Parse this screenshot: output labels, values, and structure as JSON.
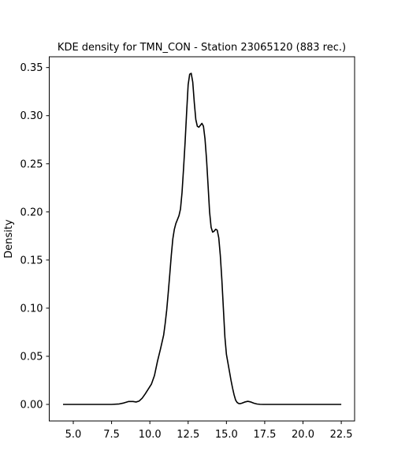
{
  "chart_data": {
    "type": "line",
    "title": "KDE density for TMN_CON - Station 23065120 (883 rec.)",
    "xlabel": "",
    "ylabel": "Density",
    "xlim": [
      3.43,
      23.37
    ],
    "ylim": [
      -0.0172,
      0.3612
    ],
    "xticks": [
      5.0,
      7.5,
      10.0,
      12.5,
      15.0,
      17.5,
      20.0,
      22.5
    ],
    "xtick_labels": [
      "5.0",
      "7.5",
      "10.0",
      "12.5",
      "15.0",
      "17.5",
      "20.0",
      "22.5"
    ],
    "yticks": [
      0.0,
      0.05,
      0.1,
      0.15,
      0.2,
      0.25,
      0.3,
      0.35
    ],
    "ytick_labels": [
      "0.00",
      "0.05",
      "0.10",
      "0.15",
      "0.20",
      "0.25",
      "0.30",
      "0.35"
    ],
    "grid": false,
    "legend": "none",
    "series": [
      {
        "color": "#000000",
        "x": [
          4.33,
          6.0,
          7.5,
          8.0,
          8.3,
          8.6,
          8.9,
          9.1,
          9.3,
          9.5,
          9.7,
          9.9,
          10.1,
          10.3,
          10.5,
          10.7,
          10.9,
          11.0,
          11.1,
          11.2,
          11.3,
          11.4,
          11.5,
          11.6,
          11.7,
          11.8,
          11.9,
          12.0,
          12.1,
          12.2,
          12.3,
          12.4,
          12.5,
          12.6,
          12.7,
          12.8,
          12.9,
          13.0,
          13.1,
          13.2,
          13.3,
          13.4,
          13.5,
          13.6,
          13.7,
          13.8,
          13.9,
          14.0,
          14.1,
          14.2,
          14.3,
          14.4,
          14.5,
          14.6,
          14.7,
          14.8,
          14.9,
          15.0,
          15.1,
          15.2,
          15.3,
          15.4,
          15.5,
          15.6,
          15.7,
          15.8,
          15.9,
          16.0,
          16.2,
          16.4,
          16.6,
          16.8,
          17.0,
          17.2,
          17.4,
          17.6,
          17.8,
          18.0,
          18.2,
          18.4,
          18.6,
          18.8,
          19.5,
          21.0,
          22.5
        ],
        "y": [
          0.0,
          0.0,
          0.0,
          0.0005,
          0.0015,
          0.003,
          0.003,
          0.0025,
          0.0035,
          0.0065,
          0.011,
          0.016,
          0.021,
          0.03,
          0.045,
          0.058,
          0.072,
          0.084,
          0.098,
          0.116,
          0.135,
          0.155,
          0.172,
          0.182,
          0.188,
          0.192,
          0.196,
          0.203,
          0.22,
          0.245,
          0.272,
          0.303,
          0.332,
          0.343,
          0.344,
          0.335,
          0.314,
          0.296,
          0.289,
          0.288,
          0.29,
          0.292,
          0.289,
          0.276,
          0.255,
          0.228,
          0.2,
          0.184,
          0.179,
          0.18,
          0.182,
          0.181,
          0.173,
          0.155,
          0.13,
          0.1,
          0.07,
          0.052,
          0.043,
          0.034,
          0.025,
          0.017,
          0.01,
          0.0045,
          0.002,
          0.001,
          0.0008,
          0.0012,
          0.0025,
          0.0032,
          0.0025,
          0.0012,
          0.0004,
          0.0001,
          0.0,
          0.0,
          0.0,
          0.0,
          0.0,
          0.0,
          0.0,
          0.0,
          0.0,
          0.0,
          0.0
        ]
      }
    ]
  }
}
